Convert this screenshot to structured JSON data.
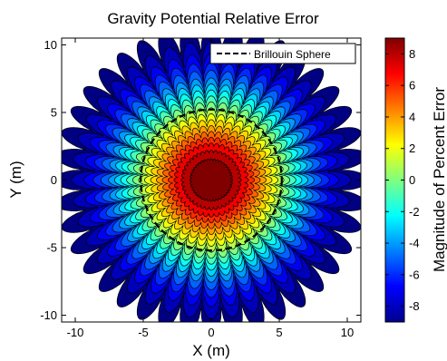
{
  "chart_data": {
    "type": "heatmap",
    "title": "Gravity Potential Relative Error",
    "xlabel": "X (m)",
    "ylabel": "Y (m)",
    "colorbar_label": "Magnitude of Percent Error",
    "xlim": [
      -11,
      11
    ],
    "ylim": [
      -10.5,
      10.5
    ],
    "xticks": [
      -10,
      -5,
      0,
      5,
      10
    ],
    "yticks": [
      -10,
      -5,
      0,
      5,
      10
    ],
    "clim": [
      -9,
      9
    ],
    "cticks": [
      -8,
      -6,
      -4,
      -2,
      0,
      2,
      4,
      6,
      8
    ],
    "colormap": "jet",
    "legend": {
      "location": "top-right",
      "entries": [
        "Brillouin Sphere"
      ]
    },
    "brillouin_radius": 5.2,
    "lobes": 40,
    "field_note": "Error is largest (about +9) at the center and falls to about -9 at the outer rim; lobed contour pattern.",
    "levels_from_center": [
      9,
      8,
      7,
      6,
      5,
      4,
      3,
      2,
      1,
      0,
      -1,
      -2,
      -3,
      -4,
      -5,
      -6,
      -7,
      -8,
      -9
    ],
    "level_outer_radii": [
      1.5,
      2.1,
      2.6,
      3.0,
      3.4,
      3.8,
      4.2,
      4.6,
      5.0,
      5.4,
      5.8,
      6.2,
      6.6,
      7.0,
      7.5,
      8.0,
      8.6,
      9.4,
      10.5
    ]
  }
}
